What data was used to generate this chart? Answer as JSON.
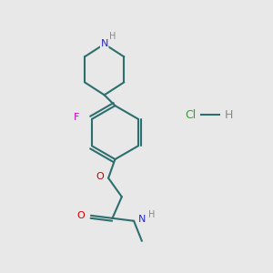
{
  "background_color": "#e8e8e8",
  "bond_color": "#2d6e6e",
  "bond_width": 1.5,
  "N_color": "#2828cc",
  "O_color": "#cc0000",
  "F_color": "#cc00cc",
  "Cl_color": "#22aa22",
  "H_color": "#888888",
  "figsize": [
    3.0,
    3.0
  ],
  "dpi": 100,
  "xlim": [
    0,
    10
  ],
  "ylim": [
    0,
    10
  ]
}
